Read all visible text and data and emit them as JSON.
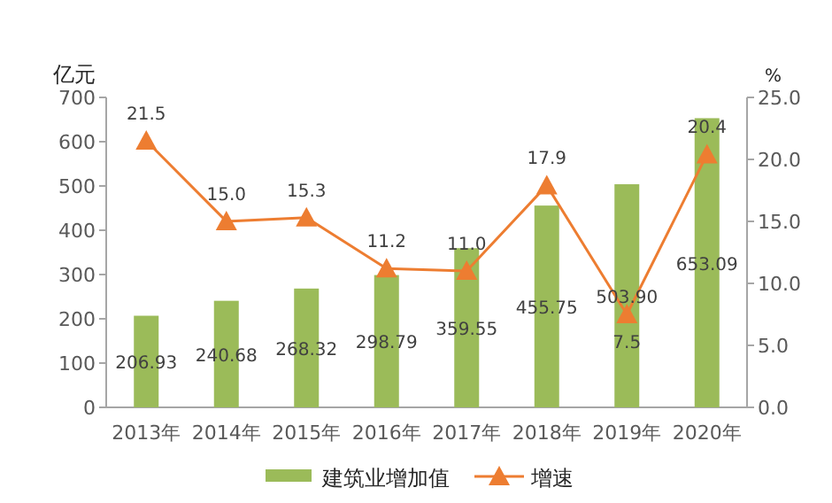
{
  "chart_data": {
    "type": "bar",
    "categories": [
      "2013年",
      "2014年",
      "2015年",
      "2016年",
      "2017年",
      "2018年",
      "2019年",
      "2020年"
    ],
    "ylabel": "亿元",
    "y2label": "%",
    "series": [
      {
        "name": "建筑业增加值",
        "color": "#9bbb59",
        "values": [
          206.93,
          240.68,
          268.32,
          298.79,
          359.55,
          455.75,
          503.9,
          653.09
        ],
        "value_labels": [
          "206.93",
          "240.68",
          "268.32",
          "298.79",
          "359.55",
          "455.75",
          "503.90",
          "653.09"
        ]
      },
      {
        "name": "增速",
        "type": "line",
        "axis": "y2",
        "color": "#ed7d31",
        "marker": "triangle",
        "values": [
          21.5,
          15.0,
          15.3,
          11.2,
          11.0,
          17.9,
          7.5,
          20.4
        ],
        "value_labels": [
          "21.5",
          "15.0",
          "15.3",
          "11.2",
          "11.0",
          "17.9",
          "7.5",
          "20.4"
        ]
      }
    ],
    "ylim": [
      0,
      700
    ],
    "yticks": [
      0,
      100,
      200,
      300,
      400,
      500,
      600,
      700
    ],
    "y2lim": [
      0,
      25
    ],
    "y2ticks": [
      {
        "value": 0,
        "label": "0.0"
      },
      {
        "value": 5,
        "label": "5.0"
      },
      {
        "value": 10,
        "label": "10.0"
      },
      {
        "value": 15,
        "label": "15.0"
      },
      {
        "value": 20,
        "label": "20.0"
      },
      {
        "value": 25,
        "label": "25.0"
      }
    ],
    "legend": "bottom",
    "grid": false
  }
}
